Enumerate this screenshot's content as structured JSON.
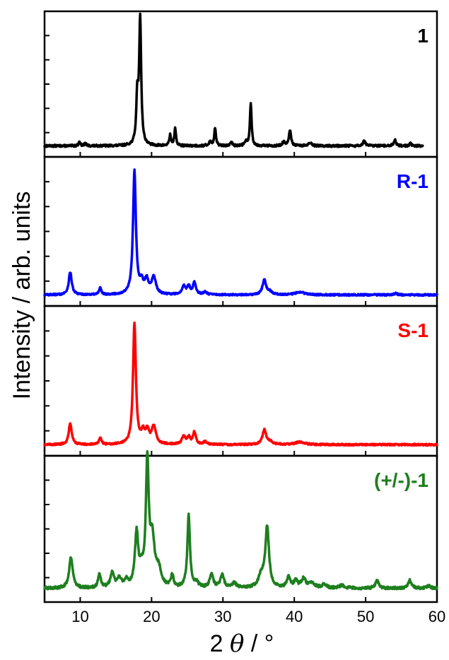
{
  "chart_data": {
    "type": "line",
    "xlabel": "2 θ / °",
    "ylabel": "Intensity / arb. units",
    "xlim": [
      5,
      60
    ],
    "xticks": [
      10,
      20,
      30,
      40,
      50,
      60
    ],
    "y_tick_labels": false,
    "panels": [
      {
        "label": "1",
        "color": "#000000",
        "x_range": [
          5,
          58
        ],
        "baseline": 0.03,
        "noise": 0.008,
        "peaks": [
          {
            "x": 9.9,
            "h": 0.03,
            "w": 0.15
          },
          {
            "x": 10.7,
            "h": 0.02,
            "w": 0.15
          },
          {
            "x": 18.0,
            "h": 0.36,
            "w": 0.17
          },
          {
            "x": 18.4,
            "h": 0.96,
            "w": 0.17
          },
          {
            "x": 22.6,
            "h": 0.08,
            "w": 0.15
          },
          {
            "x": 23.3,
            "h": 0.13,
            "w": 0.14
          },
          {
            "x": 28.2,
            "h": 0.03,
            "w": 0.2
          },
          {
            "x": 28.9,
            "h": 0.14,
            "w": 0.14
          },
          {
            "x": 31.2,
            "h": 0.03,
            "w": 0.15
          },
          {
            "x": 33.2,
            "h": 0.03,
            "w": 0.2
          },
          {
            "x": 33.9,
            "h": 0.33,
            "w": 0.14
          },
          {
            "x": 38.5,
            "h": 0.03,
            "w": 0.2
          },
          {
            "x": 39.4,
            "h": 0.12,
            "w": 0.17
          },
          {
            "x": 42.2,
            "h": 0.02,
            "w": 0.3
          },
          {
            "x": 49.8,
            "h": 0.04,
            "w": 0.2
          },
          {
            "x": 54.1,
            "h": 0.05,
            "w": 0.17
          },
          {
            "x": 56.3,
            "h": 0.02,
            "w": 0.15
          }
        ]
      },
      {
        "label": "R-1",
        "color": "#0000ff",
        "x_range": [
          5,
          60
        ],
        "baseline": 0.03,
        "noise": 0.006,
        "peaks": [
          {
            "x": 8.6,
            "h": 0.17,
            "w": 0.25
          },
          {
            "x": 12.8,
            "h": 0.05,
            "w": 0.2
          },
          {
            "x": 17.6,
            "h": 0.92,
            "w": 0.24
          },
          {
            "x": 18.6,
            "h": 0.08,
            "w": 0.3
          },
          {
            "x": 19.3,
            "h": 0.1,
            "w": 0.3
          },
          {
            "x": 20.3,
            "h": 0.13,
            "w": 0.35
          },
          {
            "x": 24.5,
            "h": 0.06,
            "w": 0.3
          },
          {
            "x": 25.2,
            "h": 0.06,
            "w": 0.25
          },
          {
            "x": 26.0,
            "h": 0.09,
            "w": 0.25
          },
          {
            "x": 27.5,
            "h": 0.02,
            "w": 0.3
          },
          {
            "x": 35.8,
            "h": 0.11,
            "w": 0.3
          },
          {
            "x": 36.6,
            "h": 0.02,
            "w": 0.4
          },
          {
            "x": 40.8,
            "h": 0.02,
            "w": 0.8
          },
          {
            "x": 54.2,
            "h": 0.01,
            "w": 0.3
          }
        ]
      },
      {
        "label": "S-1",
        "color": "#ff0000",
        "x_range": [
          5,
          60
        ],
        "baseline": 0.03,
        "noise": 0.006,
        "peaks": [
          {
            "x": 8.6,
            "h": 0.16,
            "w": 0.25
          },
          {
            "x": 12.8,
            "h": 0.05,
            "w": 0.2
          },
          {
            "x": 17.6,
            "h": 0.9,
            "w": 0.24
          },
          {
            "x": 18.8,
            "h": 0.08,
            "w": 0.3
          },
          {
            "x": 19.4,
            "h": 0.09,
            "w": 0.3
          },
          {
            "x": 20.3,
            "h": 0.13,
            "w": 0.35
          },
          {
            "x": 24.5,
            "h": 0.06,
            "w": 0.3
          },
          {
            "x": 25.2,
            "h": 0.05,
            "w": 0.25
          },
          {
            "x": 26.0,
            "h": 0.09,
            "w": 0.25
          },
          {
            "x": 27.5,
            "h": 0.02,
            "w": 0.3
          },
          {
            "x": 35.8,
            "h": 0.11,
            "w": 0.3
          },
          {
            "x": 36.6,
            "h": 0.02,
            "w": 0.4
          },
          {
            "x": 40.8,
            "h": 0.02,
            "w": 0.8
          }
        ]
      },
      {
        "label": "(+/-)-1",
        "color": "#1e7f1e",
        "x_range": [
          5,
          60
        ],
        "baseline": 0.05,
        "noise": 0.01,
        "peaks": [
          {
            "x": 8.7,
            "h": 0.24,
            "w": 0.3
          },
          {
            "x": 12.7,
            "h": 0.11,
            "w": 0.22
          },
          {
            "x": 14.5,
            "h": 0.12,
            "w": 0.3
          },
          {
            "x": 15.5,
            "h": 0.07,
            "w": 0.3
          },
          {
            "x": 16.5,
            "h": 0.05,
            "w": 0.3
          },
          {
            "x": 17.9,
            "h": 0.4,
            "w": 0.28
          },
          {
            "x": 18.6,
            "h": 0.1,
            "w": 0.35
          },
          {
            "x": 19.4,
            "h": 0.92,
            "w": 0.24
          },
          {
            "x": 20.1,
            "h": 0.35,
            "w": 0.4
          },
          {
            "x": 21.0,
            "h": 0.12,
            "w": 0.4
          },
          {
            "x": 22.9,
            "h": 0.09,
            "w": 0.2
          },
          {
            "x": 25.2,
            "h": 0.55,
            "w": 0.22
          },
          {
            "x": 26.3,
            "h": 0.04,
            "w": 0.3
          },
          {
            "x": 28.4,
            "h": 0.1,
            "w": 0.3
          },
          {
            "x": 29.9,
            "h": 0.1,
            "w": 0.3
          },
          {
            "x": 31.6,
            "h": 0.04,
            "w": 0.3
          },
          {
            "x": 35.4,
            "h": 0.09,
            "w": 0.5
          },
          {
            "x": 36.2,
            "h": 0.46,
            "w": 0.3
          },
          {
            "x": 39.2,
            "h": 0.08,
            "w": 0.3
          },
          {
            "x": 40.2,
            "h": 0.05,
            "w": 0.3
          },
          {
            "x": 41.3,
            "h": 0.07,
            "w": 0.4
          },
          {
            "x": 42.5,
            "h": 0.04,
            "w": 0.4
          },
          {
            "x": 44.2,
            "h": 0.03,
            "w": 0.4
          },
          {
            "x": 46.7,
            "h": 0.02,
            "w": 0.5
          },
          {
            "x": 51.6,
            "h": 0.06,
            "w": 0.3
          },
          {
            "x": 56.2,
            "h": 0.06,
            "w": 0.3
          },
          {
            "x": 58.8,
            "h": 0.02,
            "w": 0.3
          }
        ]
      }
    ]
  }
}
